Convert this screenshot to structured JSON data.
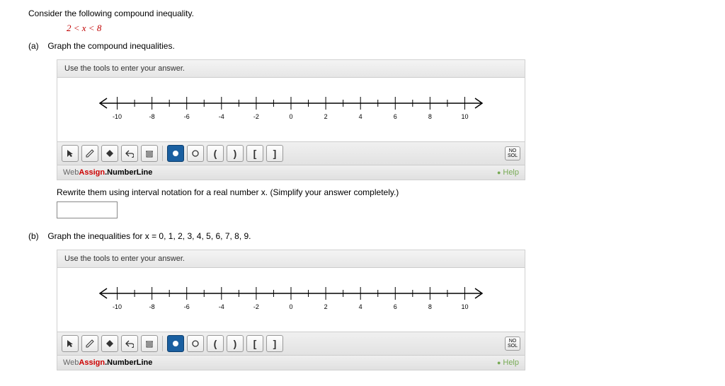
{
  "prompt": "Consider the following compound inequality.",
  "inequality": "2 < x < 8",
  "partA": {
    "label": "(a)",
    "text": "Graph the compound inequalities."
  },
  "partB": {
    "label": "(b)",
    "text": "Graph the inequalities for x = 0, 1, 2, 3, 4, 5, 6, 7, 8, 9."
  },
  "rewrite_instruction": "Rewrite them using interval notation for a real number x. (Simplify your answer completely.)",
  "widget": {
    "header": "Use the tools to enter your answer.",
    "brand_prefix": "Web",
    "brand_bold": "Assign",
    "brand_suffix": ".NumberLine",
    "help": "Help",
    "nosol_top": "NO",
    "nosol_bot": "SOL",
    "axis": {
      "min": -11,
      "max": 11,
      "major_step": 2,
      "minor_step": 1
    },
    "selected_tool_index": 5,
    "colors": {
      "selected_bg": "#1a5fa0",
      "brand_red": "#c00000"
    }
  }
}
